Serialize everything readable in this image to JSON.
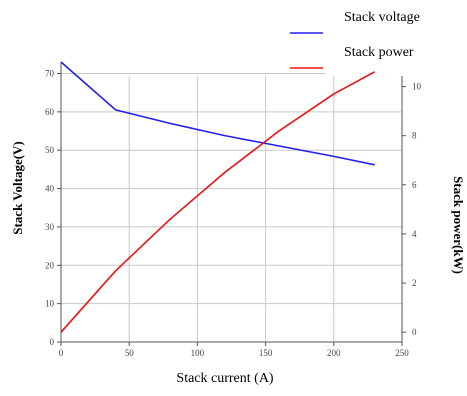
{
  "chart_data": {
    "type": "line",
    "x": [
      0,
      40,
      80,
      120,
      160,
      200,
      230
    ],
    "xlabel": "Stack current (A)",
    "xlim": [
      0,
      250
    ],
    "xticks": [
      0,
      50,
      100,
      150,
      200,
      250
    ],
    "ylabel_left": "Stack Voltage(V)",
    "ylim_left": [
      0,
      73
    ],
    "yticks_left": [
      0,
      10,
      20,
      30,
      40,
      50,
      60,
      70
    ],
    "ylabel_right": "Stack power(kW)",
    "ylim_right": [
      -0.4,
      11
    ],
    "yticks_right": [
      0,
      2,
      4,
      6,
      8,
      10
    ],
    "grid": true,
    "legend_position": "top-right",
    "series": [
      {
        "name": "Stack voltage",
        "axis": "left",
        "color": "#2222ee",
        "values": [
          73,
          60.5,
          57,
          53.8,
          51.1,
          48.4,
          46.2
        ]
      },
      {
        "name": "Stack power",
        "axis": "right",
        "color": "#ee1111",
        "values": [
          0,
          2.5,
          4.6,
          6.5,
          8.2,
          9.7,
          10.6
        ]
      }
    ]
  }
}
